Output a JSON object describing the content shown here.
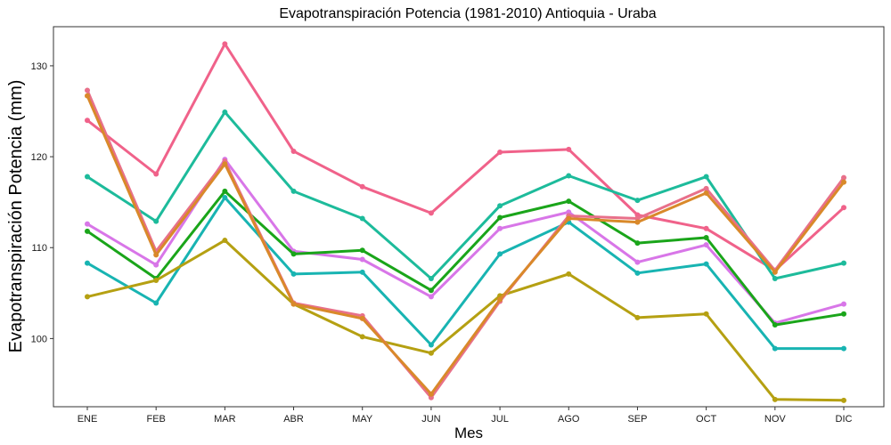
{
  "chart_data": {
    "type": "line",
    "title": "Evapotranspiración Potencia (1981-2010)  Antioquia - Uraba",
    "xlabel": "Mes",
    "ylabel": "Evapotranspiración Potencia  (mm)",
    "categories": [
      "ENE",
      "FEB",
      "MAR",
      "ABR",
      "MAY",
      "JUN",
      "JUL",
      "AGO",
      "SEP",
      "OCT",
      "NOV",
      "DIC"
    ],
    "yticks": [
      100,
      110,
      120,
      130
    ],
    "ylim": [
      92.5,
      134.3
    ],
    "grid": false,
    "legend": "none",
    "series": [
      {
        "color": "#F0628A",
        "values": [
          124.0,
          118.1,
          132.4,
          120.6,
          116.7,
          113.8,
          120.5,
          120.8,
          113.6,
          112.1,
          107.5,
          114.4
        ]
      },
      {
        "color": "#1DBB9B",
        "values": [
          117.8,
          112.9,
          124.9,
          116.2,
          113.2,
          106.6,
          114.6,
          117.9,
          115.2,
          117.8,
          106.6,
          108.3
        ]
      },
      {
        "color": "#D876E8",
        "values": [
          112.6,
          108.1,
          119.7,
          109.6,
          108.7,
          104.6,
          112.1,
          113.9,
          108.4,
          110.3,
          101.7,
          103.8
        ]
      },
      {
        "color": "#1AA51A",
        "values": [
          111.8,
          106.6,
          116.2,
          109.3,
          109.7,
          105.3,
          113.3,
          115.1,
          110.5,
          111.1,
          101.5,
          102.7
        ]
      },
      {
        "color": "#18B4B2",
        "values": [
          108.3,
          103.9,
          115.5,
          107.1,
          107.3,
          99.3,
          109.3,
          112.8,
          107.2,
          108.2,
          98.9,
          98.9
        ]
      },
      {
        "color": "#B5A012",
        "values": [
          104.6,
          106.4,
          110.8,
          103.8,
          100.2,
          98.4,
          104.7,
          107.1,
          102.3,
          102.7,
          93.3,
          93.2
        ]
      },
      {
        "color": "#E8708A",
        "values": [
          127.3,
          109.6,
          119.5,
          103.9,
          102.5,
          93.5,
          104.1,
          113.5,
          113.2,
          116.5,
          107.5,
          117.7
        ]
      },
      {
        "color": "#D9892A",
        "values": [
          126.7,
          109.2,
          119.2,
          103.8,
          102.2,
          93.9,
          104.3,
          113.2,
          112.8,
          116.0,
          107.3,
          117.2
        ]
      }
    ]
  }
}
